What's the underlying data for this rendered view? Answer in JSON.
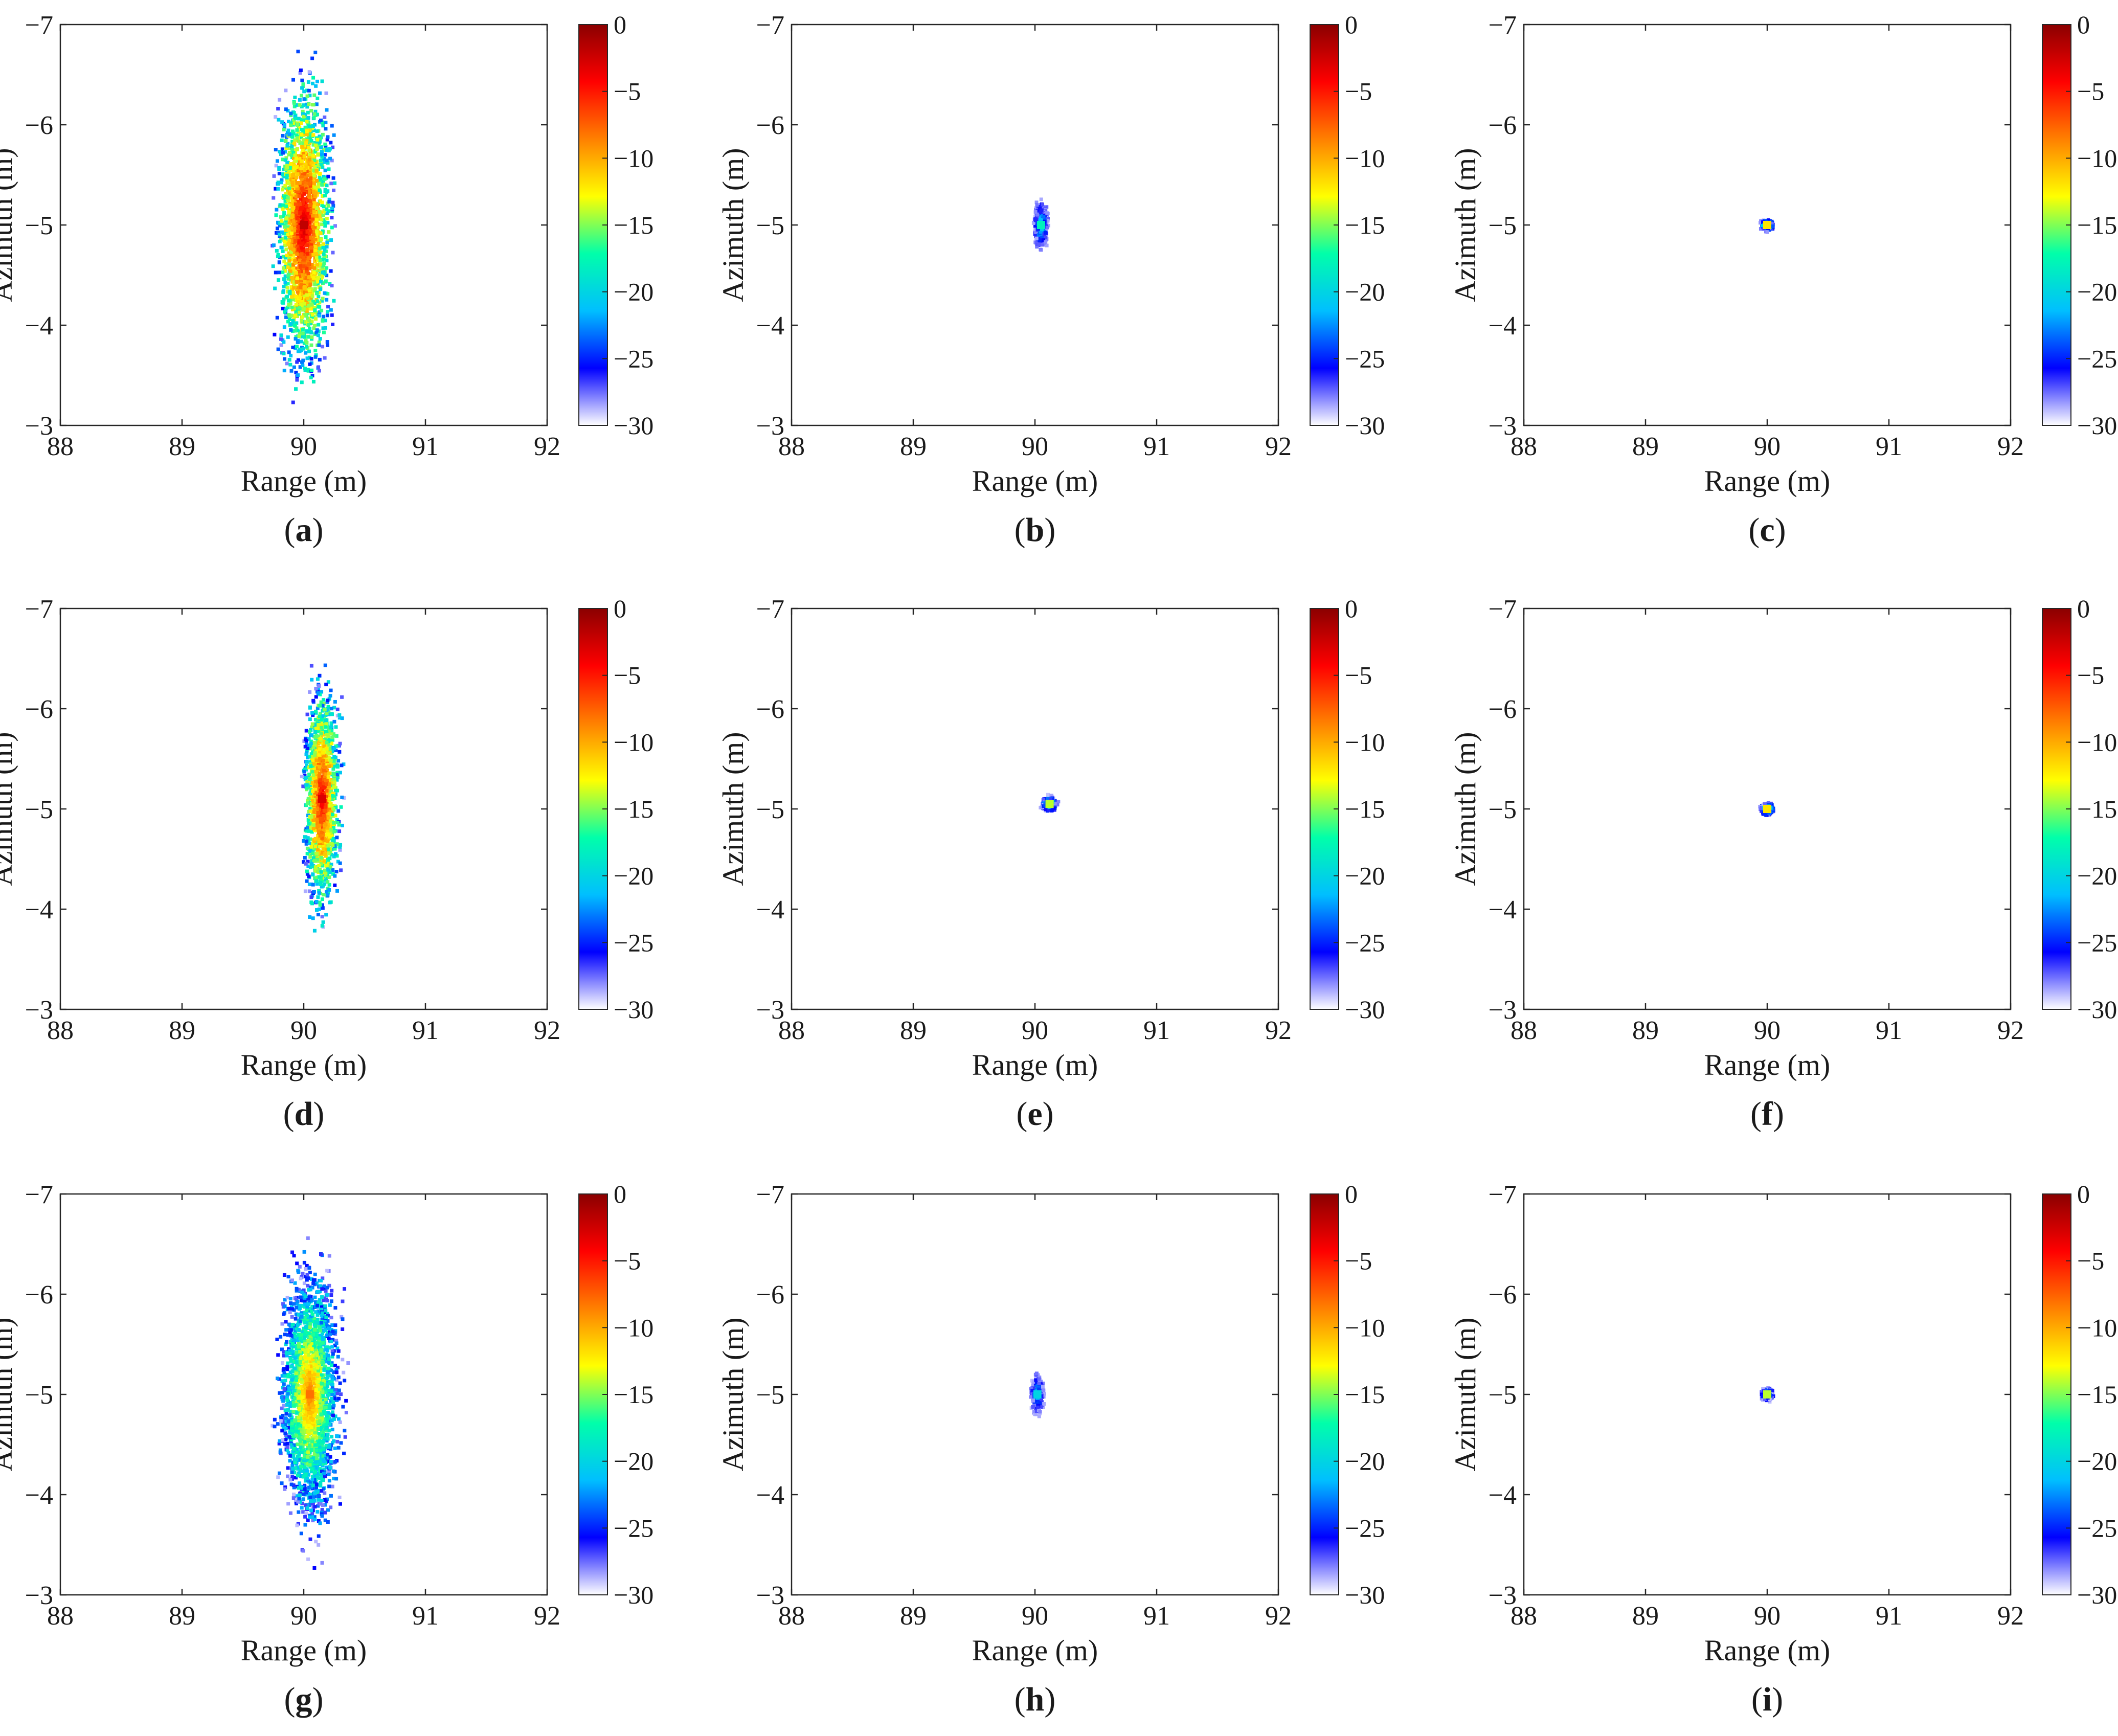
{
  "figure": {
    "colormap": [
      "#ffffff",
      "#0000ff",
      "#00bfff",
      "#00ffaa",
      "#ffff00",
      "#ff8000",
      "#ff0000",
      "#8b0000"
    ],
    "colorbar_range": [
      -30,
      0
    ],
    "colorbar_ticks": [
      "0",
      "−5",
      "−10",
      "−15",
      "−20",
      "−25",
      "−30"
    ]
  },
  "chart_data": [
    {
      "panel": "a",
      "type": "heatmap",
      "xlabel": "Range (m)",
      "ylabel": "Azimuth (m)",
      "xlim": [
        88,
        92
      ],
      "ylim": [
        -7,
        -3
      ],
      "xticks": [
        "88",
        "89",
        "90",
        "91",
        "92"
      ],
      "yticks": [
        "−7",
        "−6",
        "−5",
        "−4",
        "−3"
      ],
      "colorbar": {
        "min": -30,
        "max": 0,
        "ticks": [
          "0",
          "−5",
          "−10",
          "−15",
          "−20",
          "−25",
          "−30"
        ]
      },
      "focus": {
        "center_range": 90.0,
        "center_azimuth": -5.0,
        "range_spread": 0.3,
        "azimuth_spread": 1.9,
        "peak_db": -2
      },
      "caption": [
        "(",
        "a",
        ")"
      ]
    },
    {
      "panel": "b",
      "type": "heatmap",
      "xlabel": "Range (m)",
      "ylabel": "Azimuth (m)",
      "xlim": [
        88,
        92
      ],
      "ylim": [
        -7,
        -3
      ],
      "xticks": [
        "88",
        "89",
        "90",
        "91",
        "92"
      ],
      "yticks": [
        "−7",
        "−6",
        "−5",
        "−4",
        "−3"
      ],
      "colorbar": {
        "min": -30,
        "max": 0,
        "ticks": [
          "0",
          "−5",
          "−10",
          "−15",
          "−20",
          "−25",
          "−30"
        ]
      },
      "focus": {
        "center_range": 90.05,
        "center_azimuth": -5.0,
        "range_spread": 0.12,
        "azimuth_spread": 0.5,
        "peak_db": -18
      },
      "caption": [
        "(",
        "b",
        ")"
      ]
    },
    {
      "panel": "c",
      "type": "heatmap",
      "xlabel": "Range (m)",
      "ylabel": "Azimuth (m)",
      "xlim": [
        88,
        92
      ],
      "ylim": [
        -7,
        -3
      ],
      "xticks": [
        "88",
        "89",
        "90",
        "91",
        "92"
      ],
      "yticks": [
        "−7",
        "−6",
        "−5",
        "−4",
        "−3"
      ],
      "colorbar": {
        "min": -30,
        "max": 0,
        "ticks": [
          "0",
          "−5",
          "−10",
          "−15",
          "−20",
          "−25",
          "−30"
        ]
      },
      "focus": {
        "center_range": 90.0,
        "center_azimuth": -5.0,
        "range_spread": 0.08,
        "azimuth_spread": 0.08,
        "peak_db": -12
      },
      "caption": [
        "(",
        "c",
        ")"
      ]
    },
    {
      "panel": "d",
      "type": "heatmap",
      "xlabel": "Range (m)",
      "ylabel": "Azimuth (m)",
      "xlim": [
        88,
        92
      ],
      "ylim": [
        -7,
        -3
      ],
      "xticks": [
        "88",
        "89",
        "90",
        "91",
        "92"
      ],
      "yticks": [
        "−7",
        "−6",
        "−5",
        "−4",
        "−3"
      ],
      "colorbar": {
        "min": -30,
        "max": 0,
        "ticks": [
          "0",
          "−5",
          "−10",
          "−15",
          "−20",
          "−25",
          "−30"
        ]
      },
      "focus": {
        "center_range": 90.15,
        "center_azimuth": -5.1,
        "range_spread": 0.2,
        "azimuth_spread": 1.5,
        "peak_db": -3
      },
      "caption": [
        "(",
        "d",
        ")"
      ]
    },
    {
      "panel": "e",
      "type": "heatmap",
      "xlabel": "Range (m)",
      "ylabel": "Azimuth (m)",
      "xlim": [
        88,
        92
      ],
      "ylim": [
        -7,
        -3
      ],
      "xticks": [
        "88",
        "89",
        "90",
        "91",
        "92"
      ],
      "yticks": [
        "−7",
        "−6",
        "−5",
        "−4",
        "−3"
      ],
      "colorbar": {
        "min": -30,
        "max": 0,
        "ticks": [
          "0",
          "−5",
          "−10",
          "−15",
          "−20",
          "−25",
          "−30"
        ]
      },
      "focus": {
        "center_range": 90.12,
        "center_azimuth": -5.05,
        "range_spread": 0.1,
        "azimuth_spread": 0.12,
        "peak_db": -14
      },
      "caption": [
        "(",
        "e",
        ")"
      ]
    },
    {
      "panel": "f",
      "type": "heatmap",
      "xlabel": "Range (m)",
      "ylabel": "Azimuth (m)",
      "xlim": [
        88,
        92
      ],
      "ylim": [
        -7,
        -3
      ],
      "xticks": [
        "88",
        "89",
        "90",
        "91",
        "92"
      ],
      "yticks": [
        "−7",
        "−6",
        "−5",
        "−4",
        "−3"
      ],
      "colorbar": {
        "min": -30,
        "max": 0,
        "ticks": [
          "0",
          "−5",
          "−10",
          "−15",
          "−20",
          "−25",
          "−30"
        ]
      },
      "focus": {
        "center_range": 90.0,
        "center_azimuth": -5.0,
        "range_spread": 0.08,
        "azimuth_spread": 0.09,
        "peak_db": -12
      },
      "caption": [
        "(",
        "f",
        ")"
      ]
    },
    {
      "panel": "g",
      "type": "heatmap",
      "xlabel": "Range (m)",
      "ylabel": "Azimuth (m)",
      "xlim": [
        88,
        92
      ],
      "ylim": [
        -7,
        -3
      ],
      "xticks": [
        "88",
        "89",
        "90",
        "91",
        "92"
      ],
      "yticks": [
        "−7",
        "−6",
        "−5",
        "−4",
        "−3"
      ],
      "colorbar": {
        "min": -30,
        "max": 0,
        "ticks": [
          "0",
          "−5",
          "−10",
          "−15",
          "−20",
          "−25",
          "−30"
        ]
      },
      "focus": {
        "center_range": 90.05,
        "center_azimuth": -5.0,
        "range_spread": 0.35,
        "azimuth_spread": 1.8,
        "peak_db": -8
      },
      "caption": [
        "(",
        "g",
        ")"
      ]
    },
    {
      "panel": "h",
      "type": "heatmap",
      "xlabel": "Range (m)",
      "ylabel": "Azimuth (m)",
      "xlim": [
        88,
        92
      ],
      "ylim": [
        -7,
        -3
      ],
      "xticks": [
        "88",
        "89",
        "90",
        "91",
        "92"
      ],
      "yticks": [
        "−7",
        "−6",
        "−5",
        "−4",
        "−3"
      ],
      "colorbar": {
        "min": -30,
        "max": 0,
        "ticks": [
          "0",
          "−5",
          "−10",
          "−15",
          "−20",
          "−25",
          "−30"
        ]
      },
      "focus": {
        "center_range": 90.02,
        "center_azimuth": -5.0,
        "range_spread": 0.13,
        "azimuth_spread": 0.5,
        "peak_db": -20
      },
      "caption": [
        "(",
        "h",
        ")"
      ]
    },
    {
      "panel": "i",
      "type": "heatmap",
      "xlabel": "Range (m)",
      "ylabel": "Azimuth (m)",
      "xlim": [
        88,
        92
      ],
      "ylim": [
        -7,
        -3
      ],
      "xticks": [
        "88",
        "89",
        "90",
        "91",
        "92"
      ],
      "yticks": [
        "−7",
        "−6",
        "−5",
        "−4",
        "−3"
      ],
      "colorbar": {
        "min": -30,
        "max": 0,
        "ticks": [
          "0",
          "−5",
          "−10",
          "−15",
          "−20",
          "−25",
          "−30"
        ]
      },
      "focus": {
        "center_range": 90.0,
        "center_azimuth": -5.0,
        "range_spread": 0.08,
        "azimuth_spread": 0.1,
        "peak_db": -14
      },
      "caption": [
        "(",
        "i",
        ")"
      ]
    }
  ]
}
